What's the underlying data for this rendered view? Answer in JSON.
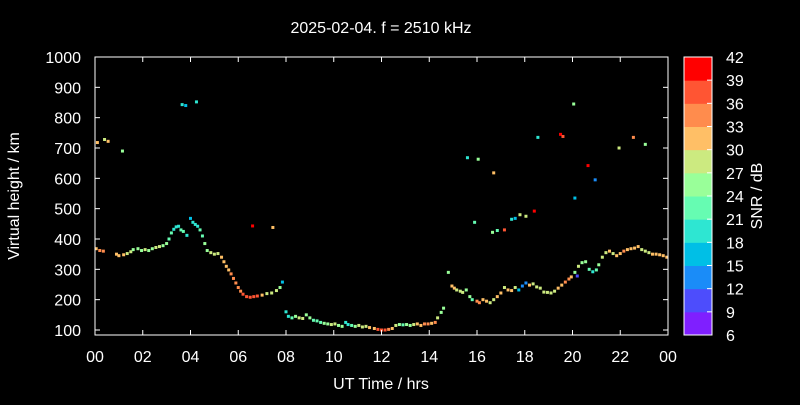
{
  "chart_data": {
    "type": "scatter",
    "title": "2025-02-04. f = 2510 kHz",
    "xlabel": "UT Time / hrs",
    "ylabel": "Virtual height / km",
    "xlim": [
      0,
      24
    ],
    "ylim": [
      80,
      1000
    ],
    "x_ticks": [
      "00",
      "02",
      "04",
      "06",
      "08",
      "10",
      "12",
      "14",
      "16",
      "18",
      "20",
      "22",
      "00"
    ],
    "y_ticks": [
      100,
      200,
      300,
      400,
      500,
      600,
      700,
      800,
      900,
      1000
    ],
    "colorbar": {
      "label": "SNR / dB",
      "min": 6,
      "max": 42,
      "ticks": [
        6,
        9,
        12,
        15,
        18,
        21,
        24,
        27,
        30,
        33,
        36,
        39,
        42
      ],
      "bands": [
        "#7f1fff",
        "#4d4dfc",
        "#1a8cf8",
        "#00bfe6",
        "#2ee6d2",
        "#66fcb2",
        "#99ff99",
        "#ccea80",
        "#ffbf66",
        "#ff8c4d",
        "#ff5533",
        "#ff0000"
      ]
    },
    "grid": false,
    "legend": "colorbar-right",
    "series": [
      {
        "points": [
          [
            0.05,
            368,
            31
          ],
          [
            0.2,
            362,
            33
          ],
          [
            0.35,
            360,
            35
          ],
          [
            0.9,
            350,
            30
          ],
          [
            1.0,
            345,
            32
          ],
          [
            1.2,
            348,
            31
          ],
          [
            1.35,
            352,
            29
          ],
          [
            1.5,
            358,
            27
          ],
          [
            1.6,
            365,
            25
          ],
          [
            1.8,
            368,
            24
          ],
          [
            1.95,
            362,
            26
          ],
          [
            2.1,
            365,
            27
          ],
          [
            2.25,
            362,
            25
          ],
          [
            2.4,
            368,
            26
          ],
          [
            2.55,
            372,
            28
          ],
          [
            2.7,
            375,
            27
          ],
          [
            2.85,
            378,
            26
          ],
          [
            3.0,
            385,
            25
          ],
          [
            3.1,
            400,
            23
          ],
          [
            3.2,
            420,
            21
          ],
          [
            3.3,
            432,
            20
          ],
          [
            3.4,
            440,
            19
          ],
          [
            3.5,
            442,
            20
          ],
          [
            3.6,
            430,
            21
          ],
          [
            3.7,
            425,
            22
          ],
          [
            3.85,
            412,
            20
          ],
          [
            4.0,
            468,
            16
          ],
          [
            4.1,
            455,
            18
          ],
          [
            4.2,
            448,
            19
          ],
          [
            4.3,
            442,
            20
          ],
          [
            4.4,
            430,
            21
          ],
          [
            4.5,
            410,
            22
          ],
          [
            4.6,
            385,
            24
          ],
          [
            4.7,
            362,
            26
          ],
          [
            4.85,
            355,
            27
          ],
          [
            5.0,
            350,
            28
          ],
          [
            5.15,
            352,
            29
          ],
          [
            5.3,
            340,
            30
          ],
          [
            5.4,
            325,
            31
          ],
          [
            5.5,
            310,
            32
          ],
          [
            5.6,
            298,
            32
          ],
          [
            5.7,
            285,
            33
          ],
          [
            5.8,
            270,
            33
          ],
          [
            5.9,
            255,
            34
          ],
          [
            6.0,
            240,
            34
          ],
          [
            6.1,
            228,
            35
          ],
          [
            6.2,
            218,
            36
          ],
          [
            6.35,
            210,
            37
          ],
          [
            6.5,
            208,
            38
          ],
          [
            6.65,
            210,
            36
          ],
          [
            6.8,
            212,
            37
          ],
          [
            7.0,
            215,
            30
          ],
          [
            7.2,
            220,
            28
          ],
          [
            7.4,
            222,
            29
          ],
          [
            7.6,
            230,
            27
          ],
          [
            7.75,
            240,
            25
          ],
          [
            7.85,
            258,
            16
          ],
          [
            8.0,
            160,
            18
          ],
          [
            8.1,
            145,
            20
          ],
          [
            8.25,
            140,
            22
          ],
          [
            8.4,
            145,
            25
          ],
          [
            8.55,
            140,
            27
          ],
          [
            8.7,
            138,
            28
          ],
          [
            8.85,
            150,
            26
          ],
          [
            9.0,
            140,
            24
          ],
          [
            9.15,
            132,
            22
          ],
          [
            9.3,
            130,
            21
          ],
          [
            9.45,
            125,
            23
          ],
          [
            9.6,
            122,
            25
          ],
          [
            9.75,
            120,
            26
          ],
          [
            9.9,
            118,
            27
          ],
          [
            10.05,
            120,
            28
          ],
          [
            10.2,
            115,
            26
          ],
          [
            10.35,
            112,
            24
          ],
          [
            10.5,
            125,
            18
          ],
          [
            10.6,
            118,
            20
          ],
          [
            10.75,
            115,
            23
          ],
          [
            10.9,
            112,
            26
          ],
          [
            11.05,
            115,
            28
          ],
          [
            11.2,
            110,
            27
          ],
          [
            11.35,
            112,
            29
          ],
          [
            11.5,
            108,
            30
          ],
          [
            11.7,
            105,
            31
          ],
          [
            11.85,
            102,
            36
          ],
          [
            12.0,
            100,
            38
          ],
          [
            12.15,
            100,
            36
          ],
          [
            12.3,
            102,
            34
          ],
          [
            12.45,
            105,
            32
          ],
          [
            12.6,
            115,
            28
          ],
          [
            12.75,
            118,
            26
          ],
          [
            12.9,
            117,
            23
          ],
          [
            13.05,
            118,
            24
          ],
          [
            13.2,
            115,
            26
          ],
          [
            13.35,
            118,
            27
          ],
          [
            13.5,
            120,
            30
          ],
          [
            13.65,
            115,
            32
          ],
          [
            13.8,
            120,
            35
          ],
          [
            13.95,
            120,
            34
          ],
          [
            14.1,
            122,
            31
          ],
          [
            14.25,
            125,
            33
          ],
          [
            14.35,
            140,
            28
          ],
          [
            14.5,
            158,
            26
          ],
          [
            14.6,
            172,
            24
          ],
          [
            14.8,
            290,
            26
          ],
          [
            14.95,
            245,
            30
          ],
          [
            15.05,
            238,
            31
          ],
          [
            15.15,
            232,
            29
          ],
          [
            15.3,
            228,
            28
          ],
          [
            15.4,
            224,
            27
          ],
          [
            15.55,
            232,
            25
          ],
          [
            15.7,
            210,
            24
          ],
          [
            15.8,
            200,
            23
          ],
          [
            16.0,
            195,
            33
          ],
          [
            16.1,
            190,
            35
          ],
          [
            16.25,
            200,
            32
          ],
          [
            16.4,
            195,
            30
          ],
          [
            16.55,
            190,
            28
          ],
          [
            16.7,
            200,
            29
          ],
          [
            16.85,
            210,
            31
          ],
          [
            17.0,
            222,
            30
          ],
          [
            17.15,
            240,
            28
          ],
          [
            17.3,
            232,
            30
          ],
          [
            17.45,
            230,
            31
          ],
          [
            17.6,
            240,
            28
          ],
          [
            17.75,
            232,
            15
          ],
          [
            17.9,
            245,
            13
          ],
          [
            18.05,
            255,
            12
          ],
          [
            18.2,
            248,
            30
          ],
          [
            18.35,
            252,
            29
          ],
          [
            18.5,
            242,
            28
          ],
          [
            18.65,
            238,
            29
          ],
          [
            18.8,
            225,
            27
          ],
          [
            18.95,
            224,
            28
          ],
          [
            19.1,
            222,
            27
          ],
          [
            19.25,
            228,
            29
          ],
          [
            19.4,
            238,
            31
          ],
          [
            19.55,
            248,
            32
          ],
          [
            19.7,
            258,
            33
          ],
          [
            19.85,
            268,
            34
          ],
          [
            19.95,
            275,
            32
          ],
          [
            20.1,
            290,
            24
          ],
          [
            20.25,
            310,
            27
          ],
          [
            20.4,
            322,
            26
          ],
          [
            20.55,
            325,
            25
          ],
          [
            20.7,
            300,
            22
          ],
          [
            20.85,
            292,
            20
          ],
          [
            21.0,
            298,
            23
          ],
          [
            21.1,
            315,
            25
          ],
          [
            21.25,
            340,
            27
          ],
          [
            21.4,
            355,
            28
          ],
          [
            21.55,
            360,
            31
          ],
          [
            21.7,
            352,
            29
          ],
          [
            21.85,
            345,
            32
          ],
          [
            22.0,
            352,
            31
          ],
          [
            22.15,
            360,
            33
          ],
          [
            22.3,
            365,
            31
          ],
          [
            22.45,
            368,
            32
          ],
          [
            22.6,
            370,
            30
          ],
          [
            22.75,
            375,
            31
          ],
          [
            22.9,
            365,
            28
          ],
          [
            23.05,
            360,
            27
          ],
          [
            23.2,
            355,
            29
          ],
          [
            23.35,
            350,
            31
          ],
          [
            23.5,
            350,
            30
          ],
          [
            23.65,
            348,
            31
          ],
          [
            23.8,
            345,
            32
          ],
          [
            23.95,
            340,
            31
          ],
          [
            0.1,
            718,
            30
          ],
          [
            0.4,
            728,
            29
          ],
          [
            0.55,
            722,
            30
          ],
          [
            1.15,
            690,
            26
          ],
          [
            3.65,
            843,
            19
          ],
          [
            3.8,
            840,
            15
          ],
          [
            4.25,
            852,
            20
          ],
          [
            6.6,
            443,
            39
          ],
          [
            7.45,
            438,
            31
          ],
          [
            15.6,
            668,
            20
          ],
          [
            15.9,
            455,
            21
          ],
          [
            16.05,
            663,
            24
          ],
          [
            16.7,
            618,
            30
          ],
          [
            16.65,
            422,
            24
          ],
          [
            16.85,
            428,
            22
          ],
          [
            17.15,
            430,
            38
          ],
          [
            17.45,
            465,
            18
          ],
          [
            17.6,
            468,
            17
          ],
          [
            17.8,
            480,
            28
          ],
          [
            18.05,
            475,
            27
          ],
          [
            18.4,
            492,
            40
          ],
          [
            18.55,
            735,
            20
          ],
          [
            19.5,
            745,
            39
          ],
          [
            19.6,
            738,
            37
          ],
          [
            20.05,
            845,
            24
          ],
          [
            20.1,
            535,
            15
          ],
          [
            20.2,
            278,
            9
          ],
          [
            20.65,
            642,
            41
          ],
          [
            20.95,
            595,
            13
          ],
          [
            21.95,
            700,
            27
          ],
          [
            22.55,
            735,
            33
          ],
          [
            23.05,
            712,
            25
          ]
        ]
      }
    ]
  }
}
